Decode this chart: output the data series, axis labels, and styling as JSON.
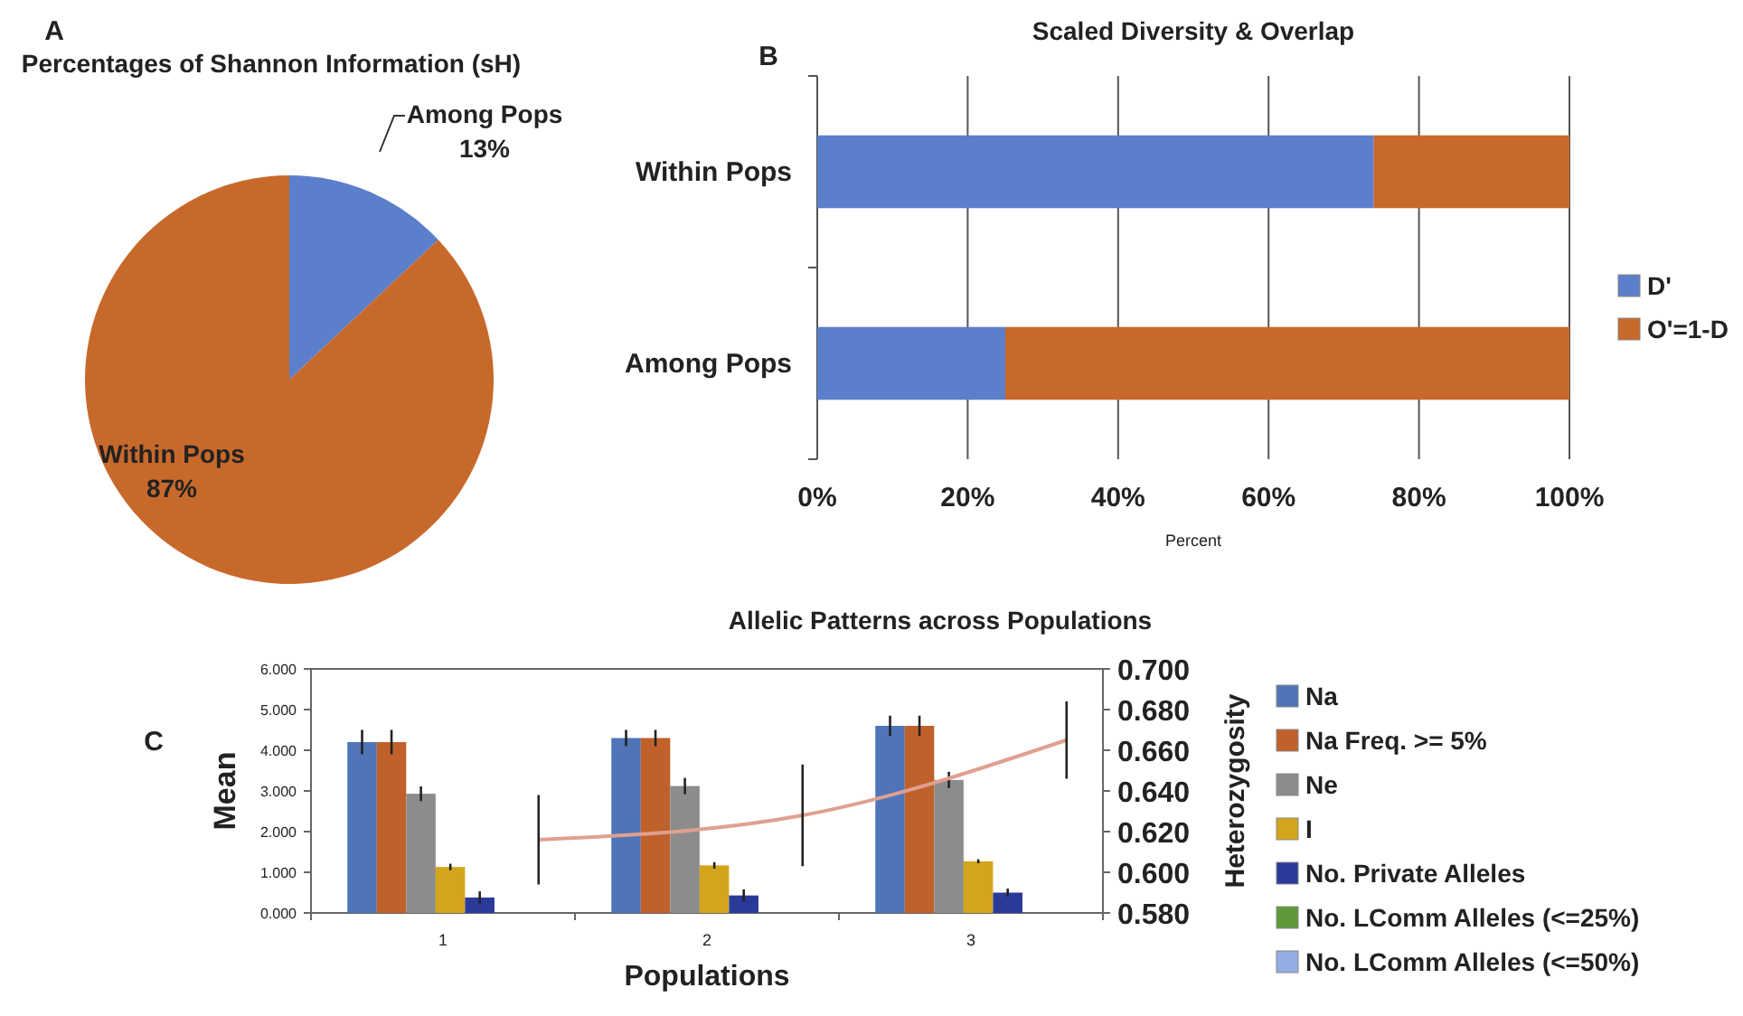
{
  "chart_data": [
    {
      "type": "pie",
      "title": "Percentages of Shannon Information (sH)",
      "annotations": [
        "A"
      ],
      "categories": [
        "Among Pops",
        "Within Pops"
      ],
      "values": [
        13,
        87
      ],
      "colors": [
        "#5b7fca",
        "#c8692c"
      ],
      "value_labels": [
        "13%",
        "87%"
      ]
    },
    {
      "type": "bar",
      "orientation": "horizontal",
      "stacked": true,
      "title": "Scaled Diversity & Overlap",
      "annotations": [
        "B"
      ],
      "xlabel": "Percent",
      "categories": [
        "Within Pops",
        "Among Pops"
      ],
      "series": [
        {
          "name": "D'",
          "color": "#5b7fca",
          "values": [
            74,
            25
          ]
        },
        {
          "name": "O'=1-D",
          "color": "#c8692c",
          "values": [
            26,
            75
          ]
        }
      ],
      "xlim": [
        0,
        100
      ],
      "xticks": [
        {
          "value": 0,
          "label": "0%"
        },
        {
          "value": 20,
          "label": "20%"
        },
        {
          "value": 40,
          "label": "40%"
        },
        {
          "value": 60,
          "label": "60%"
        },
        {
          "value": 80,
          "label": "80%"
        },
        {
          "value": 100,
          "label": "100%"
        }
      ],
      "grid": "x",
      "legend": "right"
    },
    {
      "type": "bar",
      "title": "Allelic Patterns across Populations",
      "annotations": [
        "C"
      ],
      "xlabel": "Populations",
      "ylabel": "Mean",
      "y2label": "Heterozygosity",
      "categories": [
        "1",
        "2",
        "3"
      ],
      "series": [
        {
          "name": "Na",
          "color": "#4f75b8",
          "values": [
            4.2,
            4.3,
            4.6
          ],
          "errors": [
            0.3,
            0.2,
            0.25
          ]
        },
        {
          "name": "Na Freq. >= 5%",
          "color": "#c0612b",
          "values": [
            4.2,
            4.3,
            4.6
          ],
          "errors": [
            0.3,
            0.2,
            0.25
          ]
        },
        {
          "name": "Ne",
          "color": "#8c8c8c",
          "values": [
            2.93,
            3.12,
            3.27
          ],
          "errors": [
            0.18,
            0.2,
            0.2
          ]
        },
        {
          "name": "I",
          "color": "#d4a51c",
          "values": [
            1.13,
            1.17,
            1.27
          ],
          "errors": [
            0.08,
            0.08,
            0.05
          ]
        },
        {
          "name": "No. Private Alleles",
          "color": "#2b3a99",
          "values": [
            0.38,
            0.43,
            0.5
          ],
          "errors": [
            0.15,
            0.15,
            0.1
          ]
        },
        {
          "name": "No. LComm Alleles (<=25%)",
          "color": "#5e9a3a",
          "values": [
            null,
            null,
            null
          ]
        },
        {
          "name": "No. LComm Alleles (<=50%)",
          "color": "#93aee3",
          "values": [
            null,
            null,
            null
          ]
        },
        {
          "type": "line",
          "axis": "y2",
          "color": "#e0a090",
          "values": [
            0.616,
            0.628,
            0.665
          ],
          "errors": [
            0.022,
            0.025,
            0.019
          ]
        }
      ],
      "ylim": [
        0,
        6
      ],
      "yticks": [
        {
          "value": 0,
          "label": "0.000"
        },
        {
          "value": 1,
          "label": "1.000"
        },
        {
          "value": 2,
          "label": "2.000"
        },
        {
          "value": 3,
          "label": "3.000"
        },
        {
          "value": 4,
          "label": "4.000"
        },
        {
          "value": 5,
          "label": "5.000"
        },
        {
          "value": 6,
          "label": "6.000"
        }
      ],
      "y2lim": [
        0.58,
        0.7
      ],
      "y2ticks": [
        {
          "value": 0.58,
          "label": "0.580"
        },
        {
          "value": 0.6,
          "label": "0.600"
        },
        {
          "value": 0.62,
          "label": "0.620"
        },
        {
          "value": 0.64,
          "label": "0.640"
        },
        {
          "value": 0.66,
          "label": "0.660"
        },
        {
          "value": 0.68,
          "label": "0.680"
        },
        {
          "value": 0.7,
          "label": "0.700"
        }
      ],
      "legend": "right"
    }
  ]
}
